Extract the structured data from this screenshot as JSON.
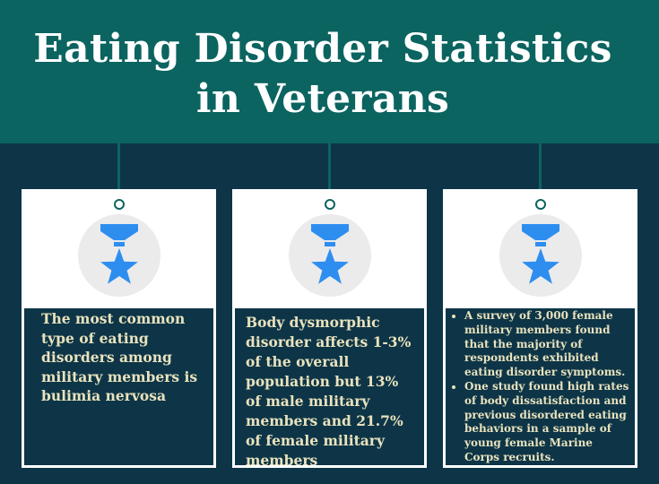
{
  "title": "Eating Disorder Statistics in Veterans",
  "colors": {
    "header_bg": "#0b6460",
    "page_bg": "#0d3547",
    "card_bg": "#ffffff",
    "text": "#e9e2bd",
    "badge_circle": "#ebebeb",
    "medal": "#2e8ef0"
  },
  "cards": [
    {
      "icon": "medal-icon",
      "text": "The most common type of eating disorders among military members is bulimia nervosa"
    },
    {
      "icon": "medal-icon",
      "text": "Body dysmorphic disorder affects 1-3% of the overall population but 13% of male military members and 21.7% of female military members"
    },
    {
      "icon": "medal-icon",
      "bullets": [
        "A survey of 3,000 female military members found that the majority of respondents exhibited eating disorder symptoms.",
        "One study found high rates of body dissatisfaction and previous disordered eating behaviors in a sample of young female Marine Corps recruits."
      ]
    }
  ]
}
